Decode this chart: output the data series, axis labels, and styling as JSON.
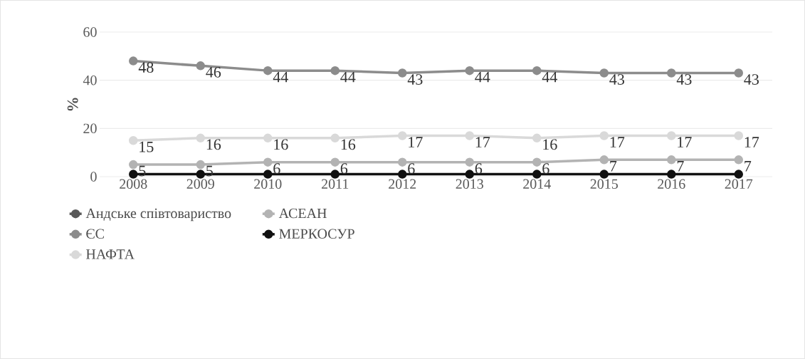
{
  "chart_data": {
    "type": "line",
    "ylabel": "%",
    "categories": [
      "2008",
      "2009",
      "2010",
      "2011",
      "2012",
      "2013",
      "2014",
      "2015",
      "2016",
      "2017"
    ],
    "series": [
      {
        "name": "Андське співтовариство",
        "color": "#595959",
        "values": [
          null,
          null,
          null,
          null,
          null,
          null,
          null,
          null,
          null,
          null
        ]
      },
      {
        "name": "АСЕАН",
        "color": "#b3b3b3",
        "values": [
          5,
          5,
          6,
          6,
          6,
          6,
          6,
          7,
          7,
          7
        ],
        "value_labels": [
          "5",
          "5",
          "6",
          "6",
          "6",
          "6",
          "6",
          "7",
          "7",
          "7"
        ]
      },
      {
        "name": "ЄС",
        "color": "#8c8c8c",
        "values": [
          48,
          46,
          44,
          44,
          43,
          44,
          44,
          43,
          43,
          43
        ],
        "value_labels": [
          "48",
          "46",
          "44",
          "44",
          "43",
          "44",
          "44",
          "43",
          "43",
          "43"
        ]
      },
      {
        "name": "МЕРКОСУР",
        "color": "#111111",
        "values": [
          1,
          1,
          1,
          1,
          1,
          1,
          1,
          1,
          1,
          1
        ]
      },
      {
        "name": "НАФТА",
        "color": "#d9d9d9",
        "values": [
          15,
          16,
          16,
          16,
          17,
          17,
          16,
          17,
          17,
          17
        ],
        "value_labels": [
          "15",
          "16",
          "16",
          "16",
          "17",
          "17",
          "16",
          "17",
          "17",
          "17"
        ]
      }
    ],
    "ylim": [
      0,
      60
    ],
    "yticks": [
      0,
      20,
      40,
      60
    ],
    "grid": "y",
    "legend": "bottom",
    "marker": "circle",
    "line_style": "solid"
  }
}
